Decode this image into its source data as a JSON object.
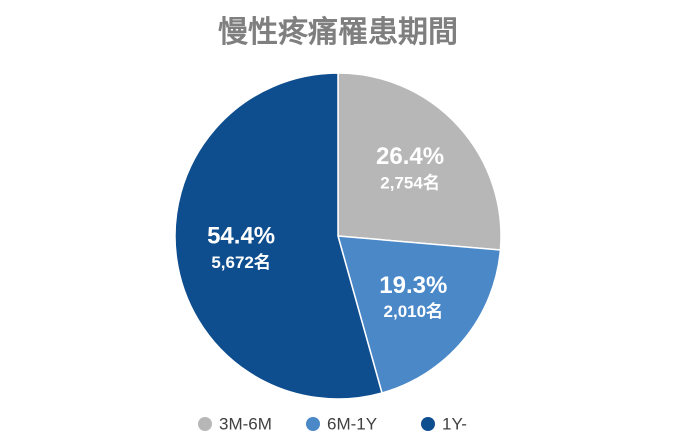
{
  "chart_data": {
    "type": "pie",
    "title": "慢性疼痛罹患期間",
    "categories": [
      "3M-6M",
      "6M-1Y",
      "1Y-"
    ],
    "values": [
      26.4,
      19.3,
      54.4
    ],
    "value_labels": [
      "26.4%",
      "19.3%",
      "54.4%"
    ],
    "count_labels": [
      "2,754名",
      "2,010名",
      "5,672名"
    ],
    "colors": [
      "#b7b7b7",
      "#4a88c8",
      "#0f4e8e"
    ],
    "legend": "bottom"
  }
}
